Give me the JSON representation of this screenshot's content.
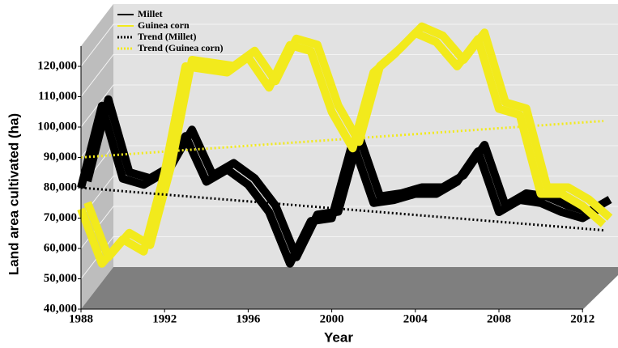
{
  "chart_data": {
    "type": "line",
    "x_label": "Year",
    "y_label": "Land area cultivated (ha)",
    "x": [
      1988,
      1989,
      1990,
      1991,
      1992,
      1993,
      1994,
      1995,
      1996,
      1997,
      1998,
      1999,
      2000,
      2001,
      2002,
      2003,
      2004,
      2005,
      2006,
      2007,
      2008,
      2009,
      2010,
      2011,
      2012,
      2013
    ],
    "series": [
      {
        "name": "Millet",
        "color": "#000000",
        "values": [
          80000,
          107000,
          83000,
          81000,
          85000,
          97000,
          82000,
          86000,
          81000,
          72000,
          55000,
          69000,
          70000,
          95000,
          75000,
          76000,
          78000,
          78000,
          82000,
          92000,
          72000,
          76000,
          75000,
          72000,
          70000,
          74000
        ]
      },
      {
        "name": "Guinea corn",
        "color": "#f2ea1c",
        "values": [
          73000,
          55000,
          63000,
          59000,
          85000,
          120000,
          119000,
          118000,
          123000,
          113000,
          127000,
          125000,
          105000,
          93000,
          118000,
          124000,
          131000,
          128000,
          120000,
          129000,
          106000,
          104000,
          78000,
          78000,
          74000,
          68000
        ]
      },
      {
        "name": "Trend (Millet)",
        "color": "#000000",
        "dotted": true,
        "x": [
          1988,
          2013
        ],
        "values": [
          80000,
          66000
        ]
      },
      {
        "name": "Trend (Guinea corn)",
        "color": "#f2ea1c",
        "dotted": true,
        "x": [
          1988,
          2013
        ],
        "values": [
          90000,
          102000
        ]
      }
    ],
    "xlim": [
      1988,
      2013
    ],
    "xticks": [
      1988,
      1992,
      1996,
      2000,
      2004,
      2008,
      2012
    ],
    "ylim": [
      40000,
      120000
    ],
    "yticks": [
      {
        "value": 40000,
        "label": "40,000"
      },
      {
        "value": 50000,
        "label": "50,000"
      },
      {
        "value": 60000,
        "label": "60,000"
      },
      {
        "value": 70000,
        "label": "70,000"
      },
      {
        "value": 80000,
        "label": "80,000"
      },
      {
        "value": 90000,
        "label": "90,000"
      },
      {
        "value": 100000,
        "label": "100,000"
      },
      {
        "value": 110000,
        "label": "110,000"
      },
      {
        "value": 120000,
        "label": "120,000"
      }
    ],
    "grid": true,
    "legend": "top-left"
  }
}
